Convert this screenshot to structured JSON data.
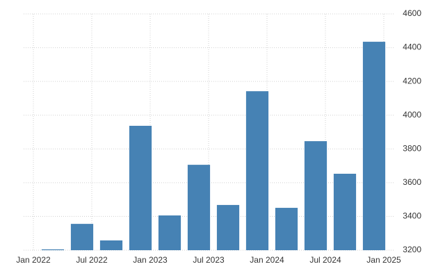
{
  "chart_data": {
    "type": "bar",
    "x": [
      2,
      5,
      8,
      11,
      14,
      17,
      20,
      23,
      26,
      29,
      32,
      35
    ],
    "values": [
      3205,
      3356,
      3258,
      3937,
      3406,
      3706,
      3468,
      4142,
      3451,
      3846,
      3653,
      4435
    ],
    "color": "#4682b4",
    "xlim": [
      -1,
      37
    ],
    "xticks": [
      {
        "value": 0,
        "label": "Jan 2022"
      },
      {
        "value": 6,
        "label": "Jul 2022"
      },
      {
        "value": 12,
        "label": "Jan 2023"
      },
      {
        "value": 18,
        "label": "Jul 2023"
      },
      {
        "value": 24,
        "label": "Jan 2024"
      },
      {
        "value": 30,
        "label": "Jul 2024"
      },
      {
        "value": 36,
        "label": "Jan 2025"
      }
    ],
    "ylim": [
      3200,
      4600
    ],
    "yticks": [
      3200,
      3400,
      3600,
      3800,
      4000,
      4200,
      4400,
      4600
    ],
    "grid": true,
    "y_axis_side": "right"
  }
}
